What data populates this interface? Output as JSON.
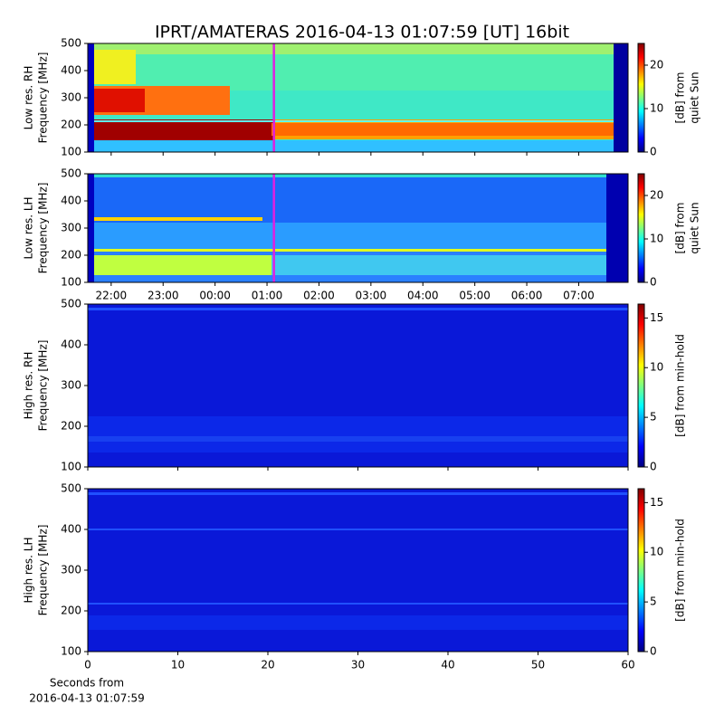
{
  "title": "IPRT/AMATERAS 2016-04-13 01:07:59 [UT]   16bit",
  "chart_data": [
    {
      "type": "spectrogram",
      "ylabel": [
        "Low res. RH",
        "Frequency [MHz]"
      ],
      "xlim": [
        21.55,
        31.95
      ],
      "ylim": [
        100,
        500
      ],
      "yticks": [
        100,
        200,
        300,
        400,
        500
      ],
      "cursor": 25.133,
      "cursor_color": "#e020e0",
      "clim": [
        0,
        25
      ],
      "cticks": [
        0,
        10,
        20
      ],
      "clabel": [
        "[dB] from",
        "quiet Sun"
      ]
    },
    {
      "type": "spectrogram",
      "ylabel": [
        "Low res. LH",
        "Frequency [MHz]"
      ],
      "xlim": [
        21.55,
        31.95
      ],
      "ylim": [
        100,
        500
      ],
      "yticks": [
        100,
        200,
        300,
        400,
        500
      ],
      "xticks": [
        {
          "value": 22,
          "label": "22:00"
        },
        {
          "value": 23,
          "label": "23:00"
        },
        {
          "value": 24,
          "label": "00:00"
        },
        {
          "value": 25,
          "label": "01:00"
        },
        {
          "value": 26,
          "label": "02:00"
        },
        {
          "value": 27,
          "label": "03:00"
        },
        {
          "value": 28,
          "label": "04:00"
        },
        {
          "value": 29,
          "label": "05:00"
        },
        {
          "value": 30,
          "label": "06:00"
        },
        {
          "value": 31,
          "label": "07:00"
        }
      ],
      "cursor": 25.133,
      "cursor_color": "#e020e0",
      "clim": [
        0,
        25
      ],
      "cticks": [
        0,
        10,
        20
      ],
      "clabel": [
        "[dB] from",
        "quiet Sun"
      ]
    },
    {
      "type": "spectrogram",
      "ylabel": [
        "High res. RH",
        "Frequency [MHz]"
      ],
      "xlim": [
        0,
        60
      ],
      "ylim": [
        100,
        500
      ],
      "yticks": [
        100,
        200,
        300,
        400,
        500
      ],
      "clim": [
        0,
        16.4
      ],
      "cticks": [
        0,
        5,
        10,
        15
      ],
      "clabel": [
        "[dB] from min-hold"
      ]
    },
    {
      "type": "spectrogram",
      "ylabel": [
        "High res. LH",
        "Frequency [MHz]"
      ],
      "xlim": [
        0,
        60
      ],
      "ylim": [
        100,
        500
      ],
      "yticks": [
        100,
        200,
        300,
        400,
        500
      ],
      "xticks": [
        0,
        10,
        20,
        30,
        40,
        50,
        60
      ],
      "xlabel": [
        "Seconds from",
        "2016-04-13 01:07:59"
      ],
      "clim": [
        0,
        16.4
      ],
      "cticks": [
        0,
        5,
        10,
        15
      ],
      "clabel": [
        "[dB] from min-hold"
      ]
    }
  ]
}
